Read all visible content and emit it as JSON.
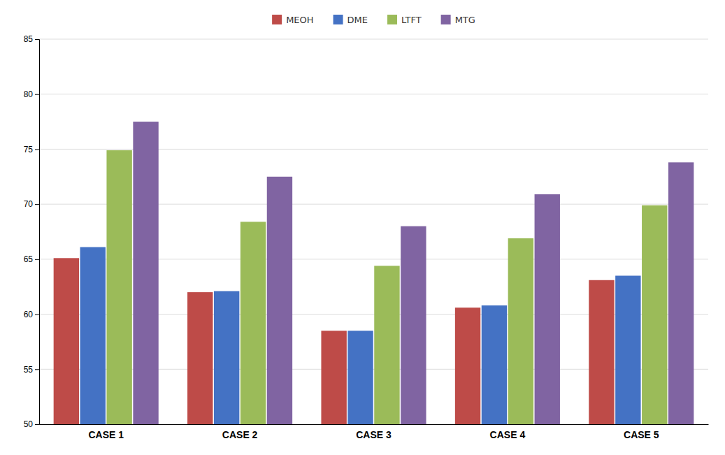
{
  "chart_data": {
    "type": "bar",
    "categories": [
      "CASE 1",
      "CASE 2",
      "CASE 3",
      "CASE 4",
      "CASE 5"
    ],
    "series": [
      {
        "name": "MEOH",
        "color": "#BE4B48",
        "values": [
          65.1,
          62.0,
          58.5,
          60.6,
          63.1
        ]
      },
      {
        "name": "DME",
        "color": "#4472C4",
        "values": [
          66.1,
          62.1,
          58.5,
          60.8,
          63.5
        ]
      },
      {
        "name": "LTFT",
        "color": "#9BBB59",
        "values": [
          74.9,
          68.4,
          64.4,
          66.9,
          69.9
        ]
      },
      {
        "name": "MTG",
        "color": "#8064A2",
        "values": [
          77.5,
          72.5,
          68.0,
          70.9,
          73.8
        ]
      }
    ],
    "ylim": [
      50,
      85
    ],
    "yticks": [
      50,
      55,
      60,
      65,
      70,
      75,
      80,
      85
    ],
    "grid": true,
    "legend": "top"
  }
}
